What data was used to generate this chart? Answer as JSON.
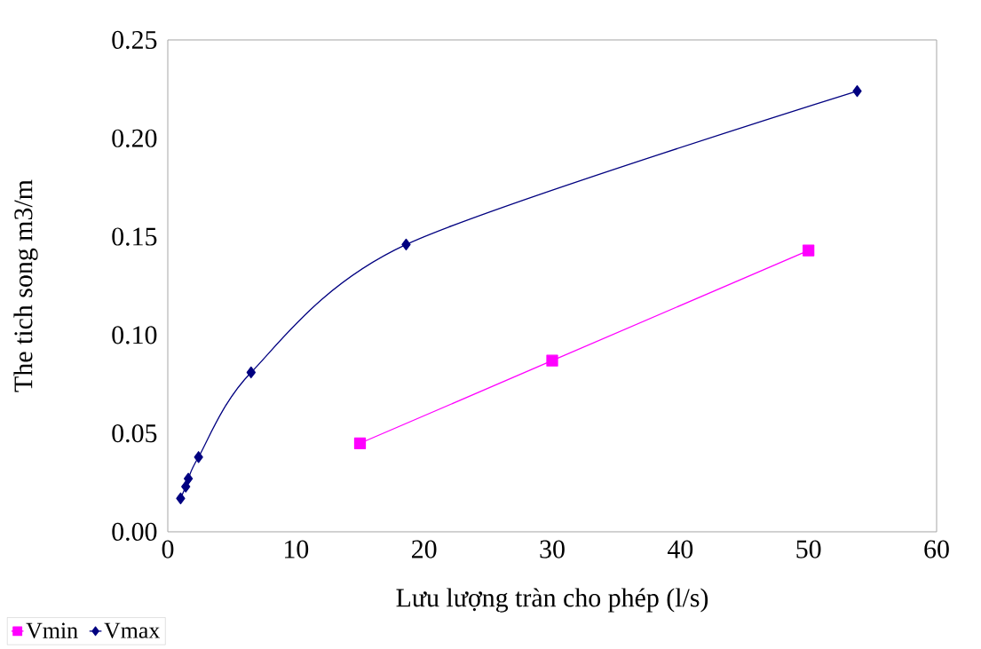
{
  "chart_data": {
    "type": "line",
    "xlabel": "Lưu lượng tràn cho phép (l/s)",
    "ylabel": "The tich song m3/m",
    "series": [
      {
        "name": "Vmin",
        "color": "#ff00ff",
        "marker": "square",
        "x": [
          15,
          30,
          50
        ],
        "values": [
          0.045,
          0.087,
          0.143
        ]
      },
      {
        "name": "Vmax",
        "color": "#000080",
        "marker": "diamond",
        "x": [
          1.0,
          1.4,
          1.6,
          2.4,
          6.5,
          18.6,
          53.8
        ],
        "values": [
          0.017,
          0.023,
          0.027,
          0.038,
          0.081,
          0.146,
          0.224
        ]
      }
    ],
    "xlim": [
      0,
      60
    ],
    "xticks": [
      0,
      10,
      20,
      30,
      40,
      50,
      60
    ],
    "ylim": [
      0,
      0.25
    ],
    "yticks": [
      {
        "value": 0,
        "label": "0.00"
      },
      {
        "value": 0.05,
        "label": "0.05"
      },
      {
        "value": 0.1,
        "label": "0.10"
      },
      {
        "value": 0.15,
        "label": "0.15"
      },
      {
        "value": 0.2,
        "label": "0.20"
      },
      {
        "value": 0.25,
        "label": "0.25"
      }
    ],
    "grid": false,
    "legend": "bottom left",
    "line_style": "solid"
  }
}
